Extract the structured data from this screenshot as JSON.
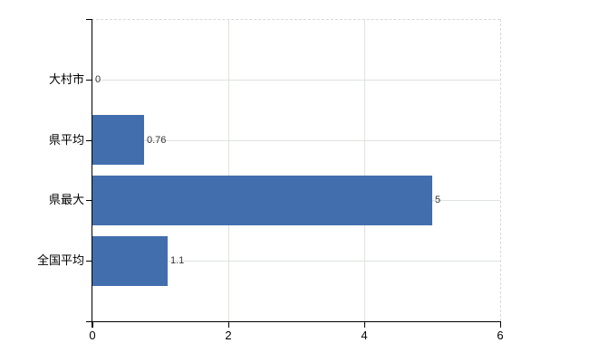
{
  "chart_data": {
    "type": "bar",
    "orientation": "horizontal",
    "title": "",
    "categories": [
      "大村市",
      "県平均",
      "県最大",
      "全国平均"
    ],
    "values": [
      0,
      0.76,
      5,
      1.1
    ],
    "value_labels": [
      "0",
      "0.76",
      "5",
      "1.1"
    ],
    "xlim": [
      0,
      6
    ],
    "x_tick_labels": [
      "0",
      "2",
      "4",
      "6"
    ],
    "x_tick_values": [
      0,
      2,
      4,
      6
    ],
    "grid": true,
    "legend_visible": false,
    "colors": {
      "bar": "#426ead",
      "gridline": "#dde4dd",
      "dashed_border": "#d8d8d8",
      "axis": "#000000",
      "value_label_text": "#333333",
      "category_label_text": "#000000",
      "tick_label_text": "#000000",
      "background": "#ffffff"
    }
  }
}
